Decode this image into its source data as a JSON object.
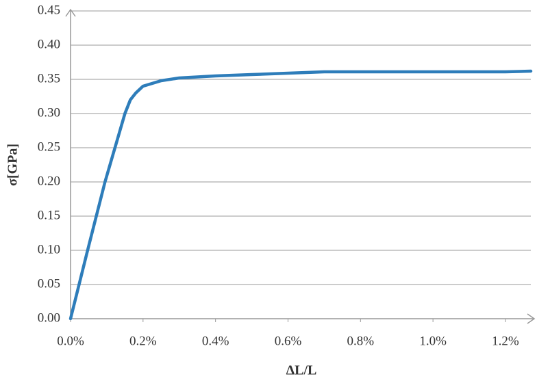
{
  "chart_data": {
    "type": "line",
    "x_label": "ΔL/L",
    "y_label": "σ[GPa]",
    "x": [
      0,
      0.047,
      0.095,
      0.15,
      0.165,
      0.18,
      0.2,
      0.25,
      0.3,
      0.4,
      0.5,
      0.6,
      0.7,
      0.8,
      1.0,
      1.2,
      1.27
    ],
    "series": [
      {
        "color": "#2e7dba",
        "values": [
          0,
          0.1,
          0.2,
          0.3,
          0.32,
          0.33,
          0.34,
          0.348,
          0.352,
          0.355,
          0.357,
          0.359,
          0.361,
          0.361,
          0.361,
          0.361,
          0.362
        ]
      }
    ],
    "xlim": [
      0,
      1.27
    ],
    "ylim": [
      0,
      0.45
    ],
    "xticks": [
      {
        "value": 0,
        "label": "0.0%"
      },
      {
        "value": 0.2,
        "label": "0.2%"
      },
      {
        "value": 0.4,
        "label": "0.4%"
      },
      {
        "value": 0.6,
        "label": "0.6%"
      },
      {
        "value": 0.8,
        "label": "0.8%"
      },
      {
        "value": 1.0,
        "label": "1.0%"
      },
      {
        "value": 1.2,
        "label": "1.2%"
      }
    ],
    "yticks": [
      {
        "value": 0,
        "label": "0.00"
      },
      {
        "value": 0.05,
        "label": "0.05"
      },
      {
        "value": 0.1,
        "label": "0.10"
      },
      {
        "value": 0.15,
        "label": "0.15"
      },
      {
        "value": 0.2,
        "label": "0.20"
      },
      {
        "value": 0.25,
        "label": "0.25"
      },
      {
        "value": 0.3,
        "label": "0.30"
      },
      {
        "value": 0.35,
        "label": "0.35"
      },
      {
        "value": 0.4,
        "label": "0.40"
      },
      {
        "value": 0.45,
        "label": "0.45"
      }
    ],
    "grid": true
  }
}
